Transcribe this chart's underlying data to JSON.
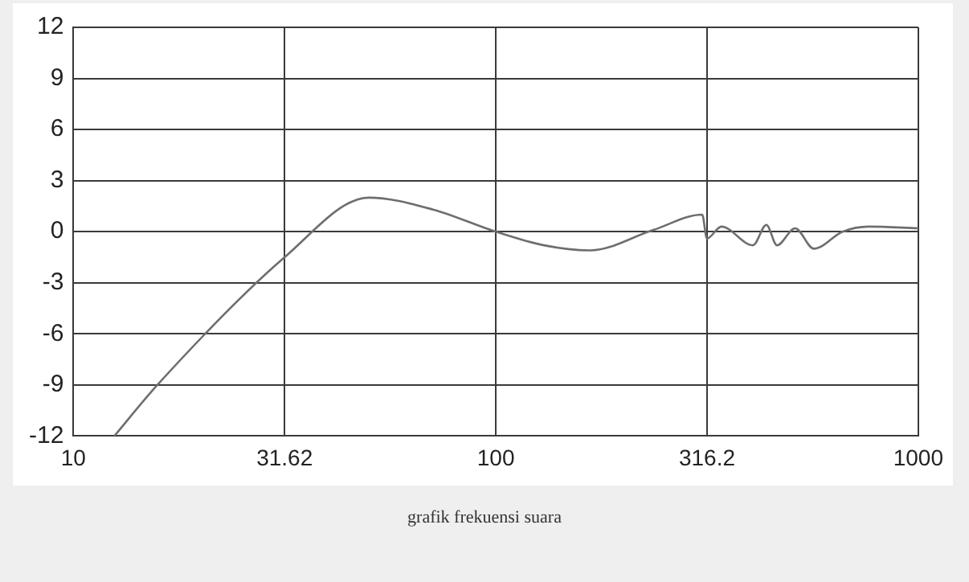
{
  "chart_data": {
    "type": "line",
    "log": "x",
    "grid": true,
    "x": [
      12.5,
      15.8,
      31.62,
      50,
      71,
      100,
      130,
      167,
      236,
      308,
      316,
      342,
      406,
      437,
      463,
      511,
      566,
      662,
      764,
      1000
    ],
    "series": [
      {
        "color": "#6e6e6e",
        "values": [
          -12,
          -9,
          -1.5,
          2,
          1.3,
          0,
          -0.8,
          -1.1,
          0.1,
          1,
          -0.4,
          0.3,
          -0.8,
          0.4,
          -0.8,
          0.2,
          -1,
          0,
          0.3,
          0.2
        ]
      }
    ],
    "xlim": [
      10,
      1000
    ],
    "xticks": [
      10,
      31.62,
      100,
      316.2,
      1000
    ],
    "ylim": [
      -12,
      12
    ],
    "yticks": [
      -12,
      -9,
      -6,
      -3,
      0,
      3,
      6,
      9,
      12
    ],
    "annotations": [
      "grafik frekuensi suara"
    ]
  }
}
